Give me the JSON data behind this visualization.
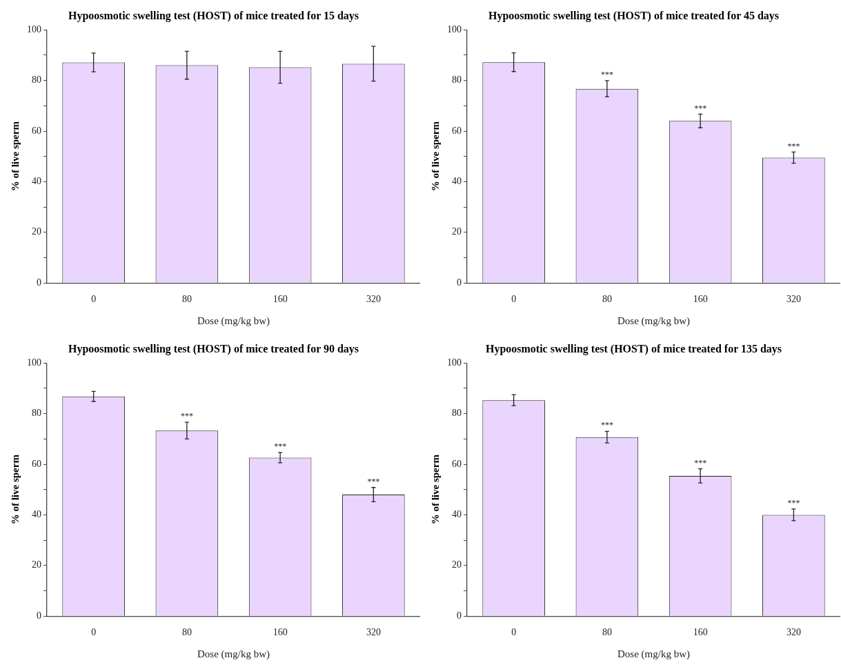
{
  "chart_data": [
    {
      "type": "bar",
      "title": "Hypoosmotic swelling test (HOST) of mice treated for 15 days",
      "xlabel": "Dose (mg/kg bw)",
      "ylabel": "% of live sperm",
      "categories": [
        "0",
        "80",
        "160",
        "320"
      ],
      "values": [
        87.1,
        86.0,
        85.2,
        86.6
      ],
      "errors": [
        3.7,
        5.5,
        6.3,
        6.9
      ],
      "color": "#e9d5fd",
      "ylim": [
        0,
        100
      ],
      "yticks": [
        0,
        {
          "value": 10,
          "label": null
        },
        20,
        {
          "value": 30,
          "label": null
        },
        40,
        {
          "value": 50,
          "label": null
        },
        60,
        {
          "value": 70,
          "label": null
        },
        80,
        {
          "value": 90,
          "label": null
        },
        100
      ]
    },
    {
      "type": "bar",
      "title": "Hypoosmotic swelling test (HOST) of mice treated for 45 days",
      "xlabel": "Dose (mg/kg bw)",
      "ylabel": "% of live sperm",
      "categories": [
        "0",
        "80",
        "160",
        "320"
      ],
      "values": [
        87.2,
        76.7,
        64.0,
        49.5
      ],
      "errors": [
        3.7,
        3.2,
        2.7,
        2.2
      ],
      "color": "#e9d5fd",
      "ylim": [
        0,
        100
      ],
      "yticks": [
        0,
        {
          "value": 10,
          "label": null
        },
        20,
        {
          "value": 30,
          "label": null
        },
        40,
        {
          "value": 50,
          "label": null
        },
        60,
        {
          "value": 70,
          "label": null
        },
        80,
        {
          "value": 90,
          "label": null
        },
        100
      ],
      "annotations": [
        {
          "text": "***",
          "x": "80",
          "y": 79.9
        },
        {
          "text": "***",
          "x": "160",
          "y": 66.7
        },
        {
          "text": "***",
          "x": "320",
          "y": 51.7
        }
      ]
    },
    {
      "type": "bar",
      "title": "Hypoosmotic swelling test (HOST) of mice treated for 90 days",
      "xlabel": "Dose (mg/kg bw)",
      "ylabel": "% of live sperm",
      "categories": [
        "0",
        "80",
        "160",
        "320"
      ],
      "values": [
        86.8,
        73.3,
        62.6,
        48.0
      ],
      "errors": [
        2.0,
        3.3,
        2.0,
        2.8
      ],
      "color": "#e9d5fd",
      "ylim": [
        0,
        100
      ],
      "yticks": [
        0,
        {
          "value": 10,
          "label": null
        },
        20,
        {
          "value": 30,
          "label": null
        },
        40,
        {
          "value": 50,
          "label": null
        },
        60,
        {
          "value": 70,
          "label": null
        },
        80,
        {
          "value": 90,
          "label": null
        },
        100
      ],
      "annotations": [
        {
          "text": "***",
          "x": "80",
          "y": 76.6
        },
        {
          "text": "***",
          "x": "160",
          "y": 64.6
        },
        {
          "text": "***",
          "x": "320",
          "y": 50.8
        }
      ]
    },
    {
      "type": "bar",
      "title": "Hypoosmotic swelling test (HOST) of mice treated for 135 days",
      "xlabel": "Dose (mg/kg bw)",
      "ylabel": "% of live sperm",
      "categories": [
        "0",
        "80",
        "160",
        "320"
      ],
      "values": [
        85.3,
        70.7,
        55.4,
        40.0
      ],
      "errors": [
        2.2,
        2.3,
        2.8,
        2.3
      ],
      "color": "#e9d5fd",
      "ylim": [
        0,
        100
      ],
      "yticks": [
        0,
        {
          "value": 10,
          "label": null
        },
        20,
        {
          "value": 30,
          "label": null
        },
        40,
        {
          "value": 50,
          "label": null
        },
        60,
        {
          "value": 70,
          "label": null
        },
        80,
        {
          "value": 90,
          "label": null
        },
        100
      ],
      "annotations": [
        {
          "text": "***",
          "x": "80",
          "y": 73.0
        },
        {
          "text": "***",
          "x": "160",
          "y": 58.2
        },
        {
          "text": "***",
          "x": "320",
          "y": 42.3
        }
      ]
    }
  ]
}
